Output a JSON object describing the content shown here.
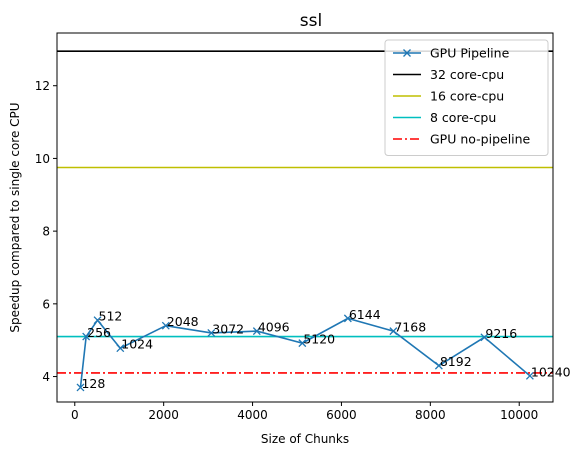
{
  "chart_data": {
    "type": "line",
    "title": "ssl",
    "xlabel": "Size of Chunks",
    "ylabel": "Speedup compared to single core CPU",
    "xlim": [
      -400,
      10760
    ],
    "ylim": [
      3.3,
      13.45
    ],
    "xticks": [
      0,
      2000,
      4000,
      6000,
      8000,
      10000
    ],
    "yticks": [
      4,
      6,
      8,
      10,
      12
    ],
    "grid": false,
    "legend_position": "top-right",
    "series": [
      {
        "name": "GPU Pipeline",
        "color": "#1f77b4",
        "marker": "x",
        "x": [
          128,
          256,
          512,
          1024,
          2048,
          3072,
          4096,
          5120,
          6144,
          7168,
          8192,
          9216,
          10240
        ],
        "y": [
          3.7,
          5.1,
          5.55,
          4.78,
          5.4,
          5.2,
          5.25,
          4.92,
          5.6,
          5.25,
          4.3,
          5.08,
          4.02
        ],
        "point_labels": [
          "128",
          "256",
          "512",
          "1024",
          "2048",
          "3072",
          "4096",
          "5120",
          "6144",
          "7168",
          "8192",
          "9216",
          "10240"
        ]
      }
    ],
    "reference_lines": [
      {
        "name": "32 core-cpu",
        "y": 12.95,
        "color": "#000000",
        "style": "solid"
      },
      {
        "name": "16 core-cpu",
        "y": 9.75,
        "color": "#bfbf00",
        "style": "solid"
      },
      {
        "name": "8 core-cpu",
        "y": 5.1,
        "color": "#00bfbf",
        "style": "solid"
      },
      {
        "name": "GPU no-pipeline",
        "y": 4.1,
        "color": "#ff0000",
        "style": "dashdot"
      }
    ]
  }
}
